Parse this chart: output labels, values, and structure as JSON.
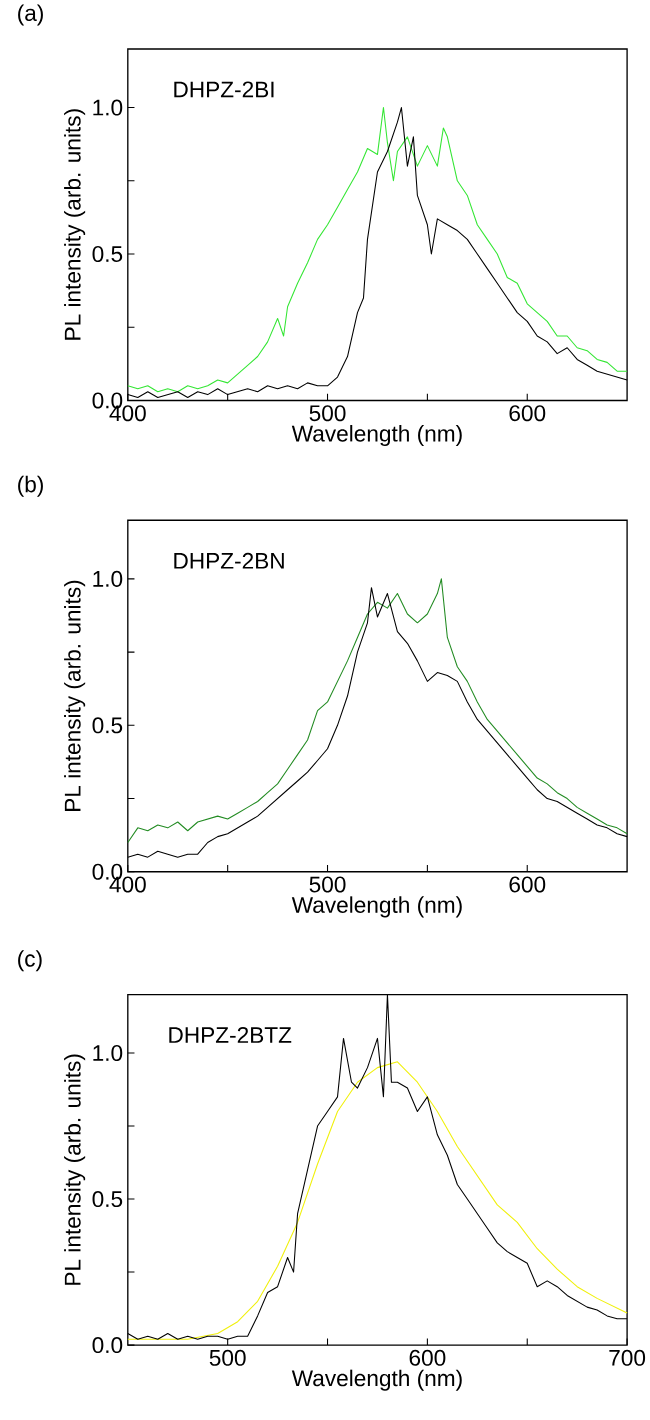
{
  "chart_data": [
    {
      "type": "line",
      "title": "(a)",
      "annotations": [
        "DHPZ-2BI"
      ],
      "xlabel": "Wavelength (nm)",
      "ylabel": "PL intensity (arb. units)",
      "xlim": [
        400,
        650
      ],
      "ylim": [
        0,
        1.2
      ],
      "xticks": [
        400,
        {
          "value": 450,
          "label": null
        },
        500,
        {
          "value": 550,
          "label": null
        },
        600
      ],
      "yticks": [
        {
          "value": 0,
          "label": "0.0"
        },
        {
          "value": 0.25,
          "label": null
        },
        {
          "value": 0.5,
          "label": "0.5"
        },
        {
          "value": 0.75,
          "label": null
        },
        {
          "value": 1,
          "label": "1.0"
        }
      ],
      "series": [
        {
          "color": "#33e633",
          "x": [
            400,
            405,
            410,
            415,
            420,
            425,
            430,
            435,
            440,
            445,
            450,
            455,
            460,
            465,
            470,
            475,
            478,
            480,
            485,
            490,
            495,
            500,
            505,
            510,
            515,
            520,
            525,
            528,
            530,
            533,
            535,
            540,
            545,
            550,
            555,
            558,
            560,
            565,
            570,
            575,
            580,
            585,
            590,
            595,
            600,
            605,
            610,
            615,
            620,
            625,
            630,
            635,
            640,
            645,
            650
          ],
          "values": [
            0.05,
            0.04,
            0.05,
            0.03,
            0.04,
            0.03,
            0.05,
            0.04,
            0.05,
            0.07,
            0.06,
            0.09,
            0.12,
            0.15,
            0.2,
            0.28,
            0.22,
            0.32,
            0.4,
            0.47,
            0.55,
            0.6,
            0.66,
            0.72,
            0.78,
            0.86,
            0.84,
            1.0,
            0.88,
            0.75,
            0.85,
            0.9,
            0.8,
            0.87,
            0.8,
            0.93,
            0.9,
            0.75,
            0.7,
            0.6,
            0.55,
            0.5,
            0.42,
            0.4,
            0.33,
            0.3,
            0.27,
            0.22,
            0.22,
            0.18,
            0.17,
            0.14,
            0.13,
            0.1,
            0.1
          ]
        },
        {
          "color": "#000000",
          "x": [
            400,
            405,
            410,
            415,
            420,
            425,
            430,
            435,
            440,
            445,
            450,
            455,
            460,
            465,
            470,
            475,
            480,
            485,
            490,
            495,
            500,
            505,
            510,
            515,
            518,
            520,
            525,
            530,
            535,
            537,
            540,
            543,
            545,
            550,
            552,
            555,
            560,
            565,
            570,
            575,
            580,
            585,
            590,
            595,
            600,
            605,
            610,
            615,
            620,
            625,
            630,
            635,
            640,
            645,
            650
          ],
          "values": [
            0.02,
            0.01,
            0.03,
            0.01,
            0.02,
            0.03,
            0.01,
            0.03,
            0.02,
            0.04,
            0.02,
            0.03,
            0.04,
            0.03,
            0.05,
            0.04,
            0.05,
            0.04,
            0.06,
            0.05,
            0.05,
            0.08,
            0.15,
            0.3,
            0.35,
            0.55,
            0.78,
            0.85,
            0.95,
            1.0,
            0.8,
            0.9,
            0.7,
            0.6,
            0.5,
            0.62,
            0.6,
            0.58,
            0.55,
            0.5,
            0.45,
            0.4,
            0.35,
            0.3,
            0.27,
            0.22,
            0.2,
            0.16,
            0.18,
            0.14,
            0.12,
            0.1,
            0.09,
            0.08,
            0.07
          ]
        }
      ]
    },
    {
      "type": "line",
      "title": "(b)",
      "annotations": [
        "DHPZ-2BN"
      ],
      "xlabel": "Wavelength (nm)",
      "ylabel": "PL intensity (arb. units)",
      "xlim": [
        400,
        650
      ],
      "ylim": [
        0,
        1.2
      ],
      "xticks": [
        400,
        {
          "value": 450,
          "label": null
        },
        500,
        {
          "value": 550,
          "label": null
        },
        600
      ],
      "yticks": [
        {
          "value": 0,
          "label": "0.0"
        },
        {
          "value": 0.25,
          "label": null
        },
        {
          "value": 0.5,
          "label": "0.5"
        },
        {
          "value": 0.75,
          "label": null
        },
        {
          "value": 1,
          "label": "1.0"
        }
      ],
      "series": [
        {
          "color": "#228b22",
          "x": [
            400,
            405,
            410,
            415,
            420,
            425,
            430,
            435,
            440,
            445,
            450,
            455,
            460,
            465,
            470,
            475,
            480,
            485,
            490,
            495,
            500,
            505,
            510,
            515,
            520,
            525,
            530,
            535,
            540,
            545,
            550,
            555,
            557,
            560,
            565,
            570,
            575,
            580,
            585,
            590,
            595,
            600,
            605,
            610,
            615,
            620,
            625,
            630,
            635,
            640,
            645,
            650
          ],
          "values": [
            0.1,
            0.15,
            0.14,
            0.16,
            0.15,
            0.17,
            0.14,
            0.17,
            0.18,
            0.19,
            0.18,
            0.2,
            0.22,
            0.24,
            0.27,
            0.3,
            0.35,
            0.4,
            0.45,
            0.55,
            0.58,
            0.65,
            0.72,
            0.8,
            0.88,
            0.92,
            0.9,
            0.95,
            0.88,
            0.85,
            0.88,
            0.95,
            1.0,
            0.8,
            0.7,
            0.65,
            0.58,
            0.52,
            0.48,
            0.44,
            0.4,
            0.36,
            0.32,
            0.3,
            0.27,
            0.25,
            0.22,
            0.2,
            0.18,
            0.16,
            0.15,
            0.13
          ]
        },
        {
          "color": "#000000",
          "x": [
            400,
            405,
            410,
            415,
            420,
            425,
            430,
            435,
            440,
            445,
            450,
            455,
            460,
            465,
            470,
            475,
            480,
            485,
            490,
            495,
            500,
            505,
            510,
            515,
            520,
            522,
            525,
            530,
            535,
            540,
            545,
            550,
            555,
            560,
            565,
            570,
            575,
            580,
            585,
            590,
            595,
            600,
            605,
            610,
            615,
            620,
            625,
            630,
            635,
            640,
            645,
            650
          ],
          "values": [
            0.05,
            0.06,
            0.05,
            0.07,
            0.06,
            0.05,
            0.06,
            0.06,
            0.1,
            0.12,
            0.13,
            0.15,
            0.17,
            0.19,
            0.22,
            0.25,
            0.28,
            0.31,
            0.34,
            0.38,
            0.42,
            0.5,
            0.6,
            0.75,
            0.85,
            0.97,
            0.87,
            0.95,
            0.82,
            0.78,
            0.72,
            0.65,
            0.68,
            0.67,
            0.65,
            0.58,
            0.52,
            0.48,
            0.44,
            0.4,
            0.36,
            0.32,
            0.28,
            0.25,
            0.24,
            0.22,
            0.2,
            0.18,
            0.16,
            0.15,
            0.13,
            0.12
          ]
        }
      ]
    },
    {
      "type": "line",
      "title": "(c)",
      "annotations": [
        "DHPZ-2BTZ"
      ],
      "xlabel": "Wavelength (nm)",
      "ylabel": "PL intensity (arb. units)",
      "xlim": [
        450,
        700
      ],
      "ylim": [
        0,
        1.2
      ],
      "xticks": [
        500,
        {
          "value": 550,
          "label": null
        },
        600,
        {
          "value": 650,
          "label": null
        },
        700
      ],
      "yticks": [
        {
          "value": 0,
          "label": "0.0"
        },
        {
          "value": 0.25,
          "label": null
        },
        {
          "value": 0.5,
          "label": "0.5"
        },
        {
          "value": 0.75,
          "label": null
        },
        {
          "value": 1,
          "label": "1.0"
        }
      ],
      "series": [
        {
          "color": "#f0f00a",
          "x": [
            450,
            465,
            480,
            495,
            505,
            515,
            525,
            535,
            545,
            555,
            565,
            575,
            585,
            595,
            605,
            615,
            625,
            635,
            645,
            655,
            665,
            675,
            685,
            700
          ],
          "values": [
            0.02,
            0.02,
            0.02,
            0.04,
            0.08,
            0.15,
            0.27,
            0.42,
            0.62,
            0.8,
            0.9,
            0.95,
            0.97,
            0.9,
            0.8,
            0.68,
            0.58,
            0.48,
            0.42,
            0.33,
            0.26,
            0.2,
            0.16,
            0.11
          ]
        },
        {
          "color": "#000000",
          "x": [
            450,
            455,
            460,
            465,
            470,
            475,
            480,
            485,
            490,
            495,
            500,
            505,
            510,
            515,
            520,
            525,
            530,
            533,
            535,
            540,
            545,
            550,
            555,
            558,
            562,
            565,
            570,
            575,
            578,
            580,
            582,
            585,
            590,
            595,
            600,
            605,
            610,
            615,
            620,
            625,
            630,
            635,
            640,
            645,
            650,
            655,
            660,
            665,
            670,
            675,
            680,
            685,
            690,
            695,
            700
          ],
          "values": [
            0.04,
            0.02,
            0.03,
            0.02,
            0.04,
            0.02,
            0.03,
            0.02,
            0.03,
            0.03,
            0.02,
            0.03,
            0.03,
            0.1,
            0.18,
            0.2,
            0.3,
            0.25,
            0.45,
            0.6,
            0.75,
            0.8,
            0.85,
            1.05,
            0.9,
            0.88,
            0.95,
            1.05,
            0.85,
            1.2,
            0.9,
            0.9,
            0.88,
            0.8,
            0.85,
            0.72,
            0.65,
            0.55,
            0.5,
            0.45,
            0.4,
            0.35,
            0.32,
            0.3,
            0.28,
            0.2,
            0.22,
            0.2,
            0.17,
            0.15,
            0.13,
            0.12,
            0.1,
            0.09,
            0.09
          ]
        }
      ]
    }
  ]
}
